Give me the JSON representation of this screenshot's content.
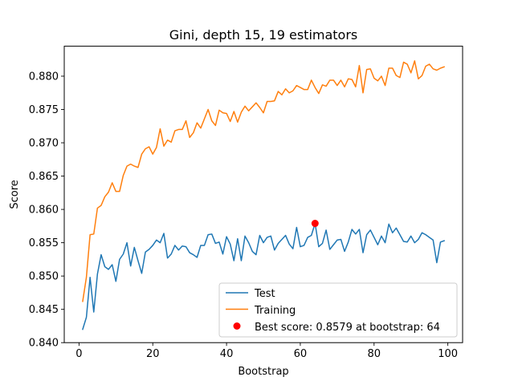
{
  "chart_data": {
    "type": "line",
    "title": "Gini, depth 15, 19 estimators",
    "xlabel": "Bootstrap",
    "ylabel": "Score",
    "xlim": [
      -4,
      104
    ],
    "ylim": [
      0.84,
      0.8845
    ],
    "x_ticks": [
      0,
      20,
      40,
      60,
      80,
      100
    ],
    "x_tick_labels": [
      "0",
      "20",
      "40",
      "60",
      "80",
      "100"
    ],
    "y_ticks": [
      0.84,
      0.845,
      0.85,
      0.855,
      0.86,
      0.865,
      0.87,
      0.875,
      0.88
    ],
    "y_tick_labels": [
      "0.840",
      "0.845",
      "0.850",
      "0.855",
      "0.860",
      "0.865",
      "0.870",
      "0.875",
      "0.880"
    ],
    "grid": false,
    "legend_position": "lower-right",
    "x": [
      1,
      2,
      3,
      4,
      5,
      6,
      7,
      8,
      9,
      10,
      11,
      12,
      13,
      14,
      15,
      16,
      17,
      18,
      19,
      20,
      21,
      22,
      23,
      24,
      25,
      26,
      27,
      28,
      29,
      30,
      31,
      32,
      33,
      34,
      35,
      36,
      37,
      38,
      39,
      40,
      41,
      42,
      43,
      44,
      45,
      46,
      47,
      48,
      49,
      50,
      51,
      52,
      53,
      54,
      55,
      56,
      57,
      58,
      59,
      60,
      61,
      62,
      63,
      64,
      65,
      66,
      67,
      68,
      69,
      70,
      71,
      72,
      73,
      74,
      75,
      76,
      77,
      78,
      79,
      80,
      81,
      82,
      83,
      84,
      85,
      86,
      87,
      88,
      89,
      90,
      91,
      92,
      93,
      94,
      95,
      96,
      97,
      98,
      99
    ],
    "series": [
      {
        "name": "Test",
        "color": "#1f77b4",
        "values": [
          0.842,
          0.8438,
          0.8498,
          0.8446,
          0.8503,
          0.8532,
          0.8514,
          0.851,
          0.8517,
          0.8492,
          0.8525,
          0.8533,
          0.855,
          0.8515,
          0.8543,
          0.8523,
          0.8504,
          0.8536,
          0.854,
          0.8546,
          0.8554,
          0.855,
          0.8564,
          0.8527,
          0.8533,
          0.8546,
          0.8539,
          0.8545,
          0.8544,
          0.8535,
          0.8532,
          0.8528,
          0.8546,
          0.8546,
          0.8562,
          0.8563,
          0.8549,
          0.8551,
          0.8533,
          0.8559,
          0.8548,
          0.8523,
          0.8556,
          0.8523,
          0.856,
          0.855,
          0.8537,
          0.8532,
          0.8561,
          0.855,
          0.8558,
          0.856,
          0.8539,
          0.8549,
          0.8555,
          0.8561,
          0.8548,
          0.8541,
          0.8573,
          0.8544,
          0.8546,
          0.8558,
          0.8561,
          0.8579,
          0.8544,
          0.8549,
          0.8569,
          0.854,
          0.8547,
          0.8554,
          0.8555,
          0.8537,
          0.8551,
          0.857,
          0.8563,
          0.857,
          0.8535,
          0.8562,
          0.8569,
          0.8558,
          0.8547,
          0.856,
          0.855,
          0.8578,
          0.8565,
          0.8572,
          0.8562,
          0.8552,
          0.8551,
          0.856,
          0.855,
          0.8555,
          0.8565,
          0.8562,
          0.8558,
          0.8554,
          0.852,
          0.8551,
          0.8553
        ]
      },
      {
        "name": "Training",
        "color": "#ff7f0e",
        "values": [
          0.8462,
          0.8498,
          0.8562,
          0.8563,
          0.8602,
          0.8606,
          0.8619,
          0.8626,
          0.864,
          0.8627,
          0.8627,
          0.8651,
          0.8665,
          0.8668,
          0.8665,
          0.8663,
          0.8683,
          0.8691,
          0.8694,
          0.8683,
          0.8693,
          0.8721,
          0.8695,
          0.8704,
          0.8701,
          0.8718,
          0.872,
          0.872,
          0.8733,
          0.8708,
          0.8715,
          0.873,
          0.8722,
          0.8736,
          0.875,
          0.8733,
          0.8726,
          0.8749,
          0.8745,
          0.8744,
          0.8732,
          0.8747,
          0.8731,
          0.8746,
          0.8755,
          0.8748,
          0.8754,
          0.876,
          0.8753,
          0.8745,
          0.8762,
          0.8762,
          0.8763,
          0.8777,
          0.8772,
          0.8781,
          0.8775,
          0.8778,
          0.8786,
          0.8783,
          0.878,
          0.878,
          0.8794,
          0.8783,
          0.8774,
          0.8787,
          0.8785,
          0.8794,
          0.8794,
          0.8786,
          0.8794,
          0.8784,
          0.8796,
          0.8795,
          0.8784,
          0.8816,
          0.8775,
          0.881,
          0.8811,
          0.8797,
          0.8793,
          0.88,
          0.8786,
          0.8812,
          0.8812,
          0.8801,
          0.8798,
          0.8821,
          0.8818,
          0.8805,
          0.8823,
          0.8796,
          0.8801,
          0.8815,
          0.8818,
          0.8811,
          0.8809,
          0.8812,
          0.8814
        ]
      },
      {
        "name": "Best score: 0.8579 at bootstrap: 64",
        "type": "point",
        "color": "#ff0000",
        "x": 64,
        "y": 0.8579
      }
    ]
  }
}
